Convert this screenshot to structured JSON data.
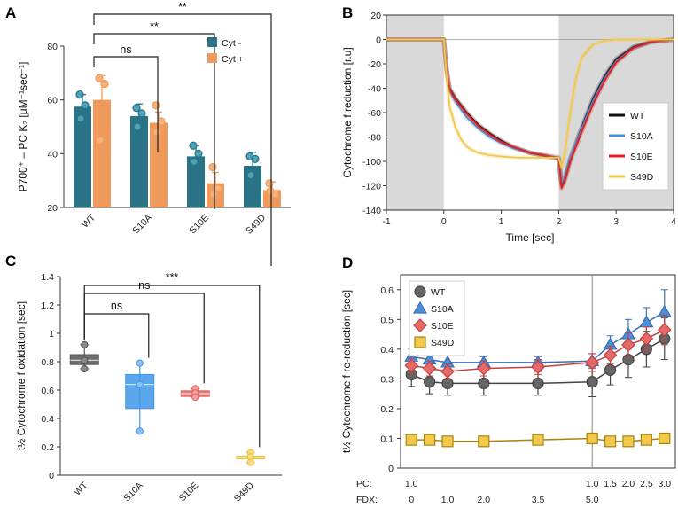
{
  "chart_data": [
    {
      "panel": "A",
      "type": "bar",
      "ylabel": "P700⁺ – PC K₂ [μM⁻¹sec⁻¹]",
      "ylim": [
        20,
        80
      ],
      "yticks": [
        20,
        40,
        60,
        80
      ],
      "categories": [
        "WT",
        "S10A",
        "S10E",
        "S49D"
      ],
      "series": [
        {
          "name": "Cyt -",
          "color": "#2a7286",
          "point_color": "#4ba3b5",
          "values": [
            57.5,
            54,
            39,
            35.5
          ],
          "errors": [
            4.5,
            4.5,
            4,
            5
          ],
          "points": [
            [
              62,
              58,
              53
            ],
            [
              57,
              55,
              50
            ],
            [
              43,
              40,
              37
            ],
            [
              39,
              38,
              32
            ]
          ]
        },
        {
          "name": "Cyt +",
          "color": "#ef9a5b",
          "point_color": "#f6b27d",
          "values": [
            60,
            51.5,
            29,
            26.5
          ],
          "errors": [
            9,
            4,
            4,
            3
          ],
          "points": [
            [
              68,
              66,
              45
            ],
            [
              58,
              52,
              48
            ],
            [
              35,
              27,
              25
            ],
            [
              29,
              25,
              26
            ]
          ]
        }
      ],
      "significance": [
        {
          "label": "ns",
          "from": "WT",
          "to": "S10A"
        },
        {
          "label": "**",
          "from": "WT",
          "to": "S10E"
        },
        {
          "label": "**",
          "from": "WT",
          "to": "S49D"
        }
      ]
    },
    {
      "panel": "B",
      "type": "line",
      "xlabel": "Time [sec]",
      "ylabel": "Cytochrome f reduction [r.u]",
      "xlim": [
        -1,
        4
      ],
      "ylim": [
        -140,
        20
      ],
      "xticks": [
        -1,
        0,
        1,
        2,
        3,
        4
      ],
      "yticks": [
        -140,
        -120,
        -100,
        -80,
        -60,
        -40,
        -20,
        0,
        20
      ],
      "shaded_regions": [
        [
          -1,
          0
        ],
        [
          2,
          4
        ]
      ],
      "legend": [
        "WT",
        "S10A",
        "S10E",
        "S49D"
      ],
      "series": [
        {
          "name": "WT",
          "color": "#111111",
          "x": [
            -1,
            0,
            0.05,
            0.1,
            0.2,
            0.4,
            0.6,
            0.8,
            1.0,
            1.2,
            1.5,
            2.0,
            2.05,
            2.1,
            2.2,
            2.4,
            2.6,
            2.8,
            3.0,
            3.3,
            3.6,
            4.0
          ],
          "y": [
            0,
            0,
            -25,
            -40,
            -48,
            -60,
            -70,
            -77,
            -83,
            -88,
            -93,
            -98,
            -119,
            -115,
            -98,
            -72,
            -48,
            -30,
            -16,
            -6,
            -2,
            0
          ]
        },
        {
          "name": "S10A",
          "color": "#4a90d9",
          "x": [
            -1,
            0,
            0.05,
            0.1,
            0.2,
            0.4,
            0.6,
            0.8,
            1.0,
            1.2,
            1.5,
            2.0,
            2.05,
            2.1,
            2.2,
            2.4,
            2.6,
            2.8,
            3.0,
            3.3,
            3.6,
            4.0
          ],
          "y": [
            0,
            0,
            -25,
            -42,
            -51,
            -64,
            -73,
            -80,
            -85,
            -89,
            -93,
            -97,
            -118,
            -114,
            -97,
            -73,
            -50,
            -32,
            -18,
            -7,
            -2,
            0
          ]
        },
        {
          "name": "S10E",
          "color": "#e01f1f",
          "x": [
            -1,
            0,
            0.05,
            0.1,
            0.2,
            0.4,
            0.6,
            0.8,
            1.0,
            1.2,
            1.5,
            2.0,
            2.05,
            2.1,
            2.2,
            2.4,
            2.6,
            2.8,
            3.0,
            3.3,
            3.6,
            4.0
          ],
          "y": [
            0,
            0,
            -25,
            -41,
            -49,
            -61,
            -71,
            -78,
            -84,
            -88,
            -93,
            -97,
            -122,
            -117,
            -100,
            -76,
            -53,
            -34,
            -19,
            -7,
            -2,
            0
          ]
        },
        {
          "name": "S49D",
          "color": "#f2c94c",
          "x": [
            -1,
            0,
            0.05,
            0.1,
            0.2,
            0.3,
            0.4,
            0.5,
            0.6,
            0.8,
            1.0,
            1.3,
            1.6,
            2.0,
            2.05,
            2.1,
            2.2,
            2.3,
            2.4,
            2.6,
            2.8,
            3.0,
            3.5,
            4.0
          ],
          "y": [
            0,
            0,
            -30,
            -55,
            -72,
            -82,
            -88,
            -91,
            -93,
            -95,
            -96,
            -97,
            -97,
            -97,
            -105,
            -95,
            -60,
            -32,
            -15,
            -4,
            -1,
            0,
            0,
            0
          ]
        }
      ]
    },
    {
      "panel": "C",
      "type": "box",
      "ylabel": "t½ Cytochrome f oxidation [sec]",
      "ylim": [
        0,
        1.4
      ],
      "yticks": [
        0,
        0.2,
        0.4,
        0.6,
        0.8,
        1.0,
        1.2,
        1.4
      ],
      "ytick_labels": [
        "0",
        "0.2",
        "0.4",
        "0.6",
        "0.8",
        "1",
        "1.2",
        "1.4"
      ],
      "categories": [
        "WT",
        "S10A",
        "S10E",
        "S49D"
      ],
      "boxes": [
        {
          "name": "WT",
          "color": "#555555",
          "point_color": "#888888",
          "min": 0.75,
          "q1": 0.78,
          "median": 0.81,
          "q3": 0.85,
          "max": 0.92,
          "points": [
            0.92,
            0.81,
            0.75
          ]
        },
        {
          "name": "S10A",
          "color": "#3f97e8",
          "point_color": "#8cc2f2",
          "min": 0.31,
          "q1": 0.47,
          "median": 0.64,
          "q3": 0.71,
          "max": 0.79,
          "points": [
            0.79,
            0.64,
            0.31
          ]
        },
        {
          "name": "S10E",
          "color": "#e06060",
          "point_color": "#f0a0a0",
          "min": 0.55,
          "q1": 0.555,
          "median": 0.575,
          "q3": 0.595,
          "max": 0.61,
          "points": [
            0.61,
            0.58,
            0.55
          ]
        },
        {
          "name": "S49D",
          "color": "#e8c33a",
          "point_color": "#f3dd86",
          "min": 0.09,
          "q1": 0.115,
          "median": 0.125,
          "q3": 0.135,
          "max": 0.16,
          "points": [
            0.16,
            0.13,
            0.09
          ]
        }
      ],
      "significance": [
        {
          "label": "ns",
          "from": "WT",
          "to": "S10A"
        },
        {
          "label": "ns",
          "from": "WT",
          "to": "S10E"
        },
        {
          "label": "***",
          "from": "WT",
          "to": "S49D"
        }
      ]
    },
    {
      "panel": "D",
      "type": "line",
      "ylabel": "t½ Cytochrome f re-reduction [sec]",
      "ylim": [
        0,
        0.65
      ],
      "yticks": [
        0,
        0.1,
        0.2,
        0.3,
        0.4,
        0.5,
        0.6
      ],
      "ytick_labels": [
        "0",
        "0.1",
        "0.2",
        "0.3",
        "0.4",
        "0.5",
        "0.6"
      ],
      "row_labels": {
        "pc": "PC:",
        "fdx": "FDX:"
      },
      "pc_labels": [
        "1.0",
        "1.0",
        "1.5",
        "2.0",
        "2.5",
        "3.0"
      ],
      "pc_positions": [
        0,
        5,
        5.5,
        6,
        6.5,
        7
      ],
      "fdx_labels": [
        "0",
        "1.0",
        "2.0",
        "3.5",
        "5.0"
      ],
      "fdx_positions": [
        0,
        1,
        2,
        3.5,
        5
      ],
      "x_positions": [
        0,
        0.5,
        1,
        2,
        3.5,
        5,
        5.5,
        6,
        6.5,
        7
      ],
      "divider_at": 5,
      "series": [
        {
          "name": "WT",
          "color": "#444444",
          "fill": "#666666",
          "marker": "circle",
          "values": [
            0.315,
            0.29,
            0.285,
            0.285,
            0.285,
            0.29,
            0.33,
            0.365,
            0.4,
            0.435
          ],
          "errors": [
            0.04,
            0.04,
            0.04,
            0.04,
            0.04,
            0.05,
            0.05,
            0.06,
            0.06,
            0.07
          ]
        },
        {
          "name": "S10A",
          "color": "#3a6fb5",
          "fill": "#4a90d9",
          "marker": "triangle",
          "values": [
            0.375,
            0.365,
            0.355,
            0.355,
            0.355,
            0.36,
            0.415,
            0.45,
            0.49,
            0.525
          ],
          "errors": [
            0.025,
            0.025,
            0.025,
            0.02,
            0.02,
            0.025,
            0.03,
            0.05,
            0.05,
            0.075
          ]
        },
        {
          "name": "S10E",
          "color": "#c73f3f",
          "fill": "#e46a6a",
          "marker": "diamond",
          "values": [
            0.345,
            0.335,
            0.325,
            0.335,
            0.34,
            0.355,
            0.38,
            0.415,
            0.435,
            0.465
          ],
          "errors": [
            0.025,
            0.025,
            0.025,
            0.025,
            0.025,
            0.03,
            0.03,
            0.04,
            0.04,
            0.05
          ]
        },
        {
          "name": "S49D",
          "color": "#a8860c",
          "fill": "#f2c94c",
          "marker": "square",
          "values": [
            0.095,
            0.095,
            0.09,
            0.09,
            0.095,
            0.1,
            0.09,
            0.09,
            0.095,
            0.1
          ],
          "errors": [
            0.01,
            0.01,
            0.01,
            0.01,
            0.01,
            0.01,
            0.01,
            0.01,
            0.01,
            0.01
          ]
        }
      ]
    }
  ]
}
